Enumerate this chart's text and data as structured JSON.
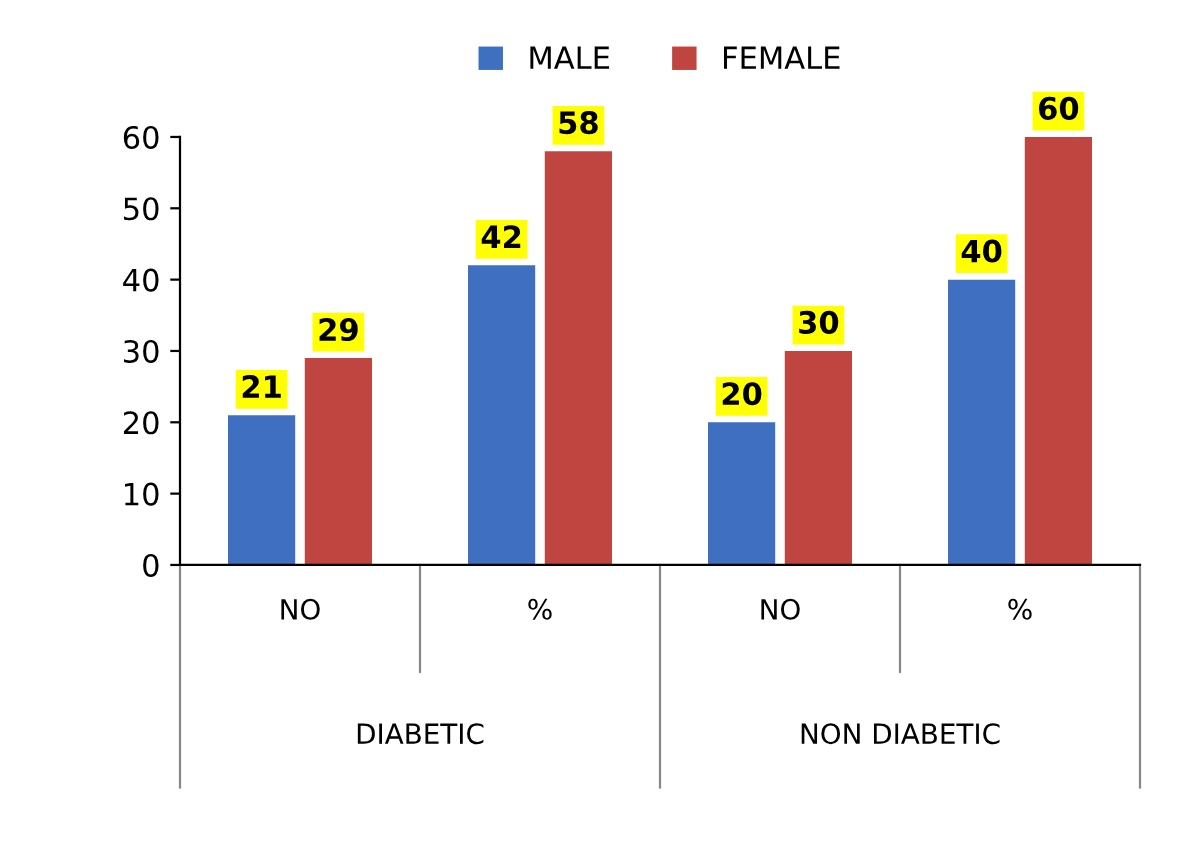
{
  "chart_data": {
    "type": "bar",
    "categories": [
      "NO",
      "%",
      "NO",
      "%"
    ],
    "series": [
      {
        "name": "MALE",
        "color": "#3f6fc0",
        "values": [
          21,
          42,
          20,
          40
        ]
      },
      {
        "name": "FEMALE",
        "color": "#c0443f",
        "values": [
          29,
          58,
          30,
          60
        ]
      }
    ],
    "ylim": [
      0,
      60
    ],
    "yticks": [
      0,
      10,
      20,
      30,
      40,
      50,
      60
    ],
    "annotations": [
      "DIABETIC",
      "NON DIABETIC"
    ],
    "data_labels": true,
    "legend": "top",
    "grid": false
  }
}
